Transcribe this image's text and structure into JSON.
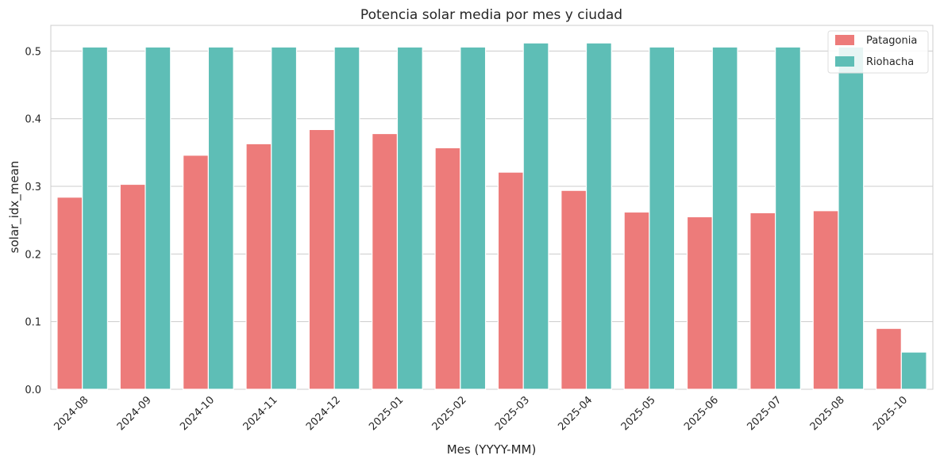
{
  "chart_data": {
    "type": "bar",
    "title": "Potencia solar media por mes y ciudad",
    "xlabel": "Mes (YYYY-MM)",
    "ylabel": "solar_idx_mean",
    "categories": [
      "2024-08",
      "2024-09",
      "2024-10",
      "2024-11",
      "2024-12",
      "2025-01",
      "2025-02",
      "2025-03",
      "2025-04",
      "2025-05",
      "2025-06",
      "2025-07",
      "2025-08",
      "2025-10"
    ],
    "series": [
      {
        "name": "Patagonia",
        "color": "#ed7b7a",
        "values": [
          0.284,
          0.303,
          0.346,
          0.363,
          0.384,
          0.378,
          0.357,
          0.321,
          0.294,
          0.262,
          0.255,
          0.261,
          0.264,
          0.09
        ]
      },
      {
        "name": "Riohacha",
        "color": "#5ebeb6",
        "values": [
          0.506,
          0.506,
          0.506,
          0.506,
          0.506,
          0.506,
          0.506,
          0.512,
          0.512,
          0.506,
          0.506,
          0.506,
          0.506,
          0.055
        ]
      }
    ],
    "ylim": [
      0,
      0.538
    ],
    "yticks": [
      0.0,
      0.1,
      0.2,
      0.3,
      0.4,
      0.5
    ],
    "ytick_labels": [
      "0.0",
      "0.1",
      "0.2",
      "0.3",
      "0.4",
      "0.5"
    ],
    "grid": "horizontal",
    "legend_position": "top-right"
  }
}
